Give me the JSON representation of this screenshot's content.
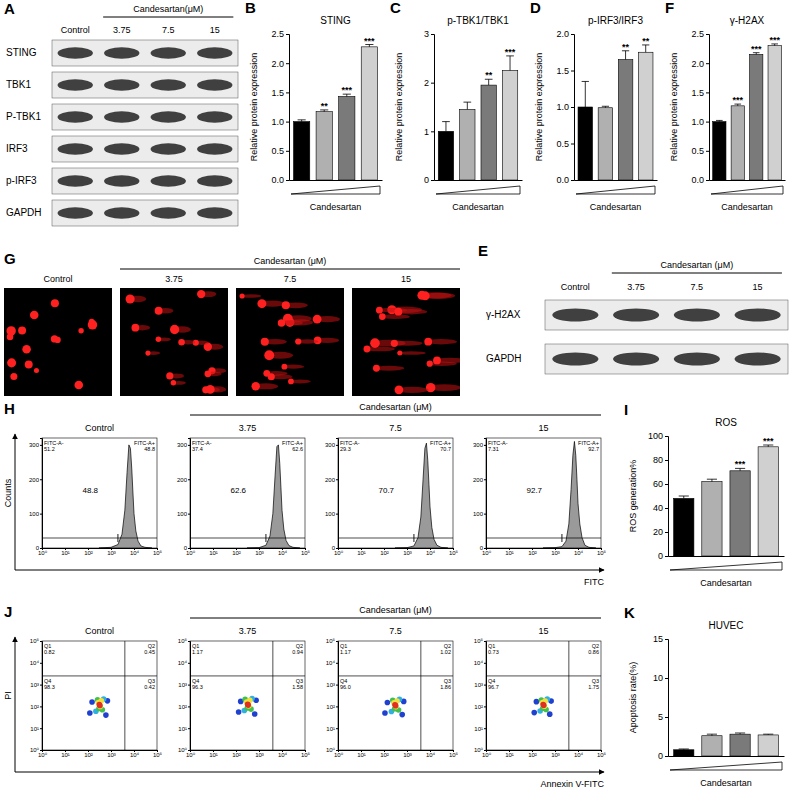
{
  "chart_data": [
    {
      "type": "blot",
      "panel": "A",
      "header": "Candesartan(μM)",
      "columns": [
        "Control",
        "3.75",
        "7.5",
        "15"
      ],
      "rows": [
        "STING",
        "TBK1",
        "P-TBK1",
        "IRF3",
        "p-IRF3",
        "GAPDH"
      ]
    },
    {
      "type": "bar",
      "panel": "B",
      "title": "STING",
      "ylabel": "Relative protein expression",
      "xlabel": "Candesartan",
      "categories": [
        null,
        null,
        null,
        null
      ],
      "values": [
        1.0,
        1.17,
        1.43,
        2.28
      ],
      "errors": [
        0.03,
        0.03,
        0.04,
        0.04
      ],
      "annotations": [
        null,
        "**",
        "***",
        "***"
      ],
      "colors": [
        "#000000",
        "#b0b0b0",
        "#7a7a7a",
        "#d0d0d0"
      ],
      "ylim": [
        0,
        2.5
      ],
      "yticks": [
        {
          "value": 0,
          "label": "0.0"
        },
        0.5,
        {
          "value": 1,
          "label": "1.0"
        },
        1.5,
        {
          "value": 2,
          "label": "2.0"
        },
        2.5
      ],
      "tick_labels": "y"
    },
    {
      "type": "bar",
      "panel": "C",
      "title": "p-TBK1/TBK1",
      "ylabel": "Relative protein expression",
      "xlabel": "Candesartan",
      "categories": [
        null,
        null,
        null,
        null
      ],
      "values": [
        1.0,
        1.45,
        1.95,
        2.25
      ],
      "errors": [
        0.2,
        0.15,
        0.12,
        0.3
      ],
      "annotations": [
        null,
        null,
        "**",
        "***"
      ],
      "colors": [
        "#000000",
        "#b0b0b0",
        "#7a7a7a",
        "#d0d0d0"
      ],
      "ylim": [
        0,
        3
      ],
      "yticks": [
        0,
        1,
        2,
        3
      ],
      "tick_labels": "y"
    },
    {
      "type": "bar",
      "panel": "D",
      "title": "p-IRF3/IRF3",
      "ylabel": "Relative protein expression",
      "xlabel": "Candesartan",
      "categories": [
        null,
        null,
        null,
        null
      ],
      "values": [
        1.0,
        0.99,
        1.65,
        1.75
      ],
      "errors": [
        0.35,
        0.02,
        0.12,
        0.1
      ],
      "annotations": [
        null,
        null,
        "**",
        "**"
      ],
      "colors": [
        "#000000",
        "#b0b0b0",
        "#7a7a7a",
        "#d0d0d0"
      ],
      "ylim": [
        0,
        2
      ],
      "yticks": [
        {
          "value": 0,
          "label": "0.0"
        },
        0.5,
        {
          "value": 1,
          "label": "1.0"
        },
        1.5,
        {
          "value": 2,
          "label": "2.0"
        }
      ],
      "tick_labels": "y"
    },
    {
      "type": "blot",
      "panel": "E",
      "header": "Candesartan (μM)",
      "columns": [
        "Control",
        "3.75",
        "7.5",
        "15"
      ],
      "rows": [
        "γ-H2AX",
        "GAPDH"
      ]
    },
    {
      "type": "bar",
      "panel": "F",
      "title": "γ-H2AX",
      "ylabel": "Relative protein expression",
      "xlabel": "Candesartan",
      "categories": [
        null,
        null,
        null,
        null
      ],
      "values": [
        1.0,
        1.27,
        2.15,
        2.3
      ],
      "errors": [
        0.02,
        0.03,
        0.03,
        0.03
      ],
      "annotations": [
        null,
        "***",
        "***",
        "***"
      ],
      "colors": [
        "#000000",
        "#b0b0b0",
        "#7a7a7a",
        "#d0d0d0"
      ],
      "ylim": [
        0,
        2.5
      ],
      "yticks": [
        {
          "value": 0,
          "label": "0.0"
        },
        0.5,
        {
          "value": 1,
          "label": "1.0"
        },
        1.5,
        {
          "value": 2,
          "label": "2.0"
        },
        2.5
      ],
      "tick_labels": "y"
    },
    {
      "type": "image",
      "panel": "G",
      "header": "Candesartan (μM)",
      "columns": [
        "Control",
        "3.75",
        "7.5",
        "15"
      ]
    },
    {
      "type": "area",
      "panel": "H",
      "header": "Candesartan (μM)",
      "xlabel": "FITC",
      "ylabel": "Counts",
      "log": "x",
      "xlim": [
        1,
        100000
      ],
      "xticks": [
        {
          "value": 1,
          "label": "10⁰"
        },
        {
          "value": 10,
          "label": "10¹"
        },
        {
          "value": 100,
          "label": "10²"
        },
        {
          "value": 1000,
          "label": "10³"
        },
        {
          "value": 10000,
          "label": "10⁴"
        },
        {
          "value": 100000,
          "label": "10⁵"
        }
      ],
      "ylim": [
        0,
        320
      ],
      "yticks": [
        0,
        100,
        200,
        300
      ],
      "panels": [
        {
          "title": "Control",
          "x": [
            300,
            1000,
            2000,
            3000,
            4000,
            5000,
            6000,
            7000,
            8000,
            9000,
            10000,
            12000,
            15000,
            20000,
            30000,
            60000
          ],
          "values": [
            0,
            2,
            10,
            40,
            110,
            220,
            300,
            290,
            230,
            160,
            100,
            50,
            20,
            6,
            2,
            0
          ],
          "gate": 2000,
          "gate_labels": [
            "FITC-A-",
            "FITC-A+"
          ],
          "gate_values": [
            51.2,
            48.8
          ]
        },
        {
          "title": "3.75",
          "x": [
            300,
            1000,
            2000,
            3000,
            4000,
            5000,
            6000,
            7000,
            8000,
            9000,
            10000,
            12000,
            15000,
            20000,
            30000,
            60000
          ],
          "values": [
            0,
            1,
            8,
            35,
            100,
            210,
            295,
            300,
            245,
            175,
            110,
            55,
            22,
            7,
            2,
            0
          ],
          "gate": 2000,
          "gate_labels": [
            "FITC-A-",
            "FITC-A+"
          ],
          "gate_values": [
            37.4,
            62.6
          ]
        },
        {
          "title": "7.5",
          "x": [
            300,
            1000,
            2000,
            3000,
            4000,
            5000,
            6000,
            7000,
            8000,
            9000,
            10000,
            12000,
            15000,
            20000,
            30000,
            60000
          ],
          "values": [
            0,
            1,
            6,
            30,
            90,
            200,
            290,
            305,
            255,
            185,
            120,
            60,
            25,
            8,
            2,
            0
          ],
          "gate": 2000,
          "gate_labels": [
            "FITC-A-",
            "FITC-A+"
          ],
          "gate_values": [
            29.3,
            70.7
          ]
        },
        {
          "title": "15",
          "x": [
            300,
            1000,
            2000,
            3000,
            4000,
            5000,
            6000,
            7000,
            8000,
            9000,
            10000,
            12000,
            15000,
            20000,
            30000,
            60000
          ],
          "values": [
            0,
            1,
            4,
            20,
            70,
            170,
            270,
            310,
            270,
            200,
            130,
            70,
            30,
            8,
            2,
            0
          ],
          "gate": 2000,
          "gate_labels": [
            "FITC-A-",
            "FITC-A+"
          ],
          "gate_values": [
            7.31,
            92.7
          ]
        }
      ]
    },
    {
      "type": "bar",
      "panel": "I",
      "title": "ROS",
      "ylabel": "ROS generation%",
      "xlabel": "Candesartan",
      "categories": [
        null,
        null,
        null,
        null
      ],
      "values": [
        48,
        62,
        71,
        91
      ],
      "errors": [
        2,
        2,
        2,
        1.5
      ],
      "annotations": [
        null,
        null,
        "***",
        "***"
      ],
      "colors": [
        "#000000",
        "#b0b0b0",
        "#7a7a7a",
        "#d0d0d0"
      ],
      "ylim": [
        0,
        100
      ],
      "yticks": [
        0,
        20,
        40,
        60,
        80,
        100
      ],
      "tick_labels": "y"
    },
    {
      "type": "scatter",
      "panel": "J",
      "header": "Candesartan (μM)",
      "xlabel": "Annexin V-FITC",
      "ylabel": "PI",
      "log": true,
      "xlim": [
        1,
        100000
      ],
      "ylim": [
        1,
        100000
      ],
      "xticks": [
        {
          "value": 1,
          "label": "10⁰"
        },
        {
          "value": 10,
          "label": "10¹"
        },
        {
          "value": 100,
          "label": "10²"
        },
        {
          "value": 1000,
          "label": "10³"
        },
        {
          "value": 10000,
          "label": "10⁴"
        },
        {
          "value": 100000,
          "label": "10⁵"
        }
      ],
      "yticks": [
        {
          "value": 1,
          "label": "10⁰"
        },
        {
          "value": 10,
          "label": "10¹"
        },
        {
          "value": 100,
          "label": "10²"
        },
        {
          "value": 1000,
          "label": "10³"
        },
        {
          "value": 10000,
          "label": "10⁴"
        },
        {
          "value": 100000,
          "label": "10⁵"
        }
      ],
      "panels": [
        {
          "title": "Control",
          "x": [
            120,
            700,
            150,
            600,
            220,
            480,
            260,
            420,
            300,
            380,
            280,
            340,
            310,
            330
          ],
          "values": [
            50,
            180,
            160,
            40,
            60,
            220,
            200,
            70,
            80,
            180,
            150,
            100,
            120,
            110
          ],
          "colors": [
            "#2040d0",
            "#2040d0",
            "#2040d0",
            "#2040d0",
            "#30b0e0",
            "#30b0e0",
            "#40c050",
            "#40c050",
            "#40c050",
            "#f0e040",
            "#f0e040",
            "#f0e040",
            "#e03020",
            "#e03020"
          ],
          "quadrant_x": 4000,
          "quadrant_y": 2500,
          "quadrant_labels": [
            "Q1",
            "Q2",
            "Q3",
            "Q4"
          ],
          "quadrant_values": [
            0.82,
            0.45,
            0.42,
            98.3
          ]
        },
        {
          "title": "3.75",
          "x": [
            130,
            750,
            160,
            650,
            230,
            500,
            250,
            450,
            310,
            400,
            290,
            360,
            320,
            340
          ],
          "values": [
            55,
            190,
            170,
            45,
            65,
            230,
            210,
            75,
            85,
            190,
            160,
            105,
            125,
            115
          ],
          "colors": [
            "#2040d0",
            "#2040d0",
            "#2040d0",
            "#2040d0",
            "#30b0e0",
            "#30b0e0",
            "#40c050",
            "#40c050",
            "#40c050",
            "#f0e040",
            "#f0e040",
            "#f0e040",
            "#e03020",
            "#e03020"
          ],
          "quadrant_x": 4000,
          "quadrant_y": 2500,
          "quadrant_labels": [
            "Q1",
            "Q2",
            "Q3",
            "Q4"
          ],
          "quadrant_values": [
            1.17,
            0.94,
            1.58,
            96.3
          ]
        },
        {
          "title": "7.5",
          "x": [
            110,
            720,
            140,
            620,
            210,
            470,
            240,
            430,
            290,
            370,
            270,
            330,
            300,
            320
          ],
          "values": [
            50,
            170,
            150,
            42,
            58,
            210,
            190,
            68,
            78,
            175,
            145,
            98,
            118,
            108
          ],
          "colors": [
            "#2040d0",
            "#2040d0",
            "#2040d0",
            "#2040d0",
            "#30b0e0",
            "#30b0e0",
            "#40c050",
            "#40c050",
            "#40c050",
            "#f0e040",
            "#f0e040",
            "#f0e040",
            "#e03020",
            "#e03020"
          ],
          "quadrant_x": 4000,
          "quadrant_y": 2500,
          "quadrant_labels": [
            "Q1",
            "Q2",
            "Q3",
            "Q4"
          ],
          "quadrant_values": [
            1.17,
            1.02,
            1.86,
            96
          ],
          "quadrant_value_labels": [
            "1.17",
            "1.02",
            "1.86",
            "96.0"
          ]
        },
        {
          "title": "15",
          "x": [
            125,
            680,
            155,
            590,
            225,
            460,
            255,
            410,
            295,
            375,
            285,
            345,
            305,
            325
          ],
          "values": [
            52,
            175,
            165,
            44,
            62,
            215,
            195,
            72,
            82,
            178,
            152,
            102,
            122,
            112
          ],
          "colors": [
            "#2040d0",
            "#2040d0",
            "#2040d0",
            "#2040d0",
            "#30b0e0",
            "#30b0e0",
            "#40c050",
            "#40c050",
            "#40c050",
            "#f0e040",
            "#f0e040",
            "#f0e040",
            "#e03020",
            "#e03020"
          ],
          "quadrant_x": 4000,
          "quadrant_y": 2500,
          "quadrant_labels": [
            "Q1",
            "Q2",
            "Q3",
            "Q4"
          ],
          "quadrant_values": [
            0.73,
            0.86,
            1.75,
            96.7
          ]
        }
      ]
    },
    {
      "type": "bar",
      "panel": "K",
      "title": "HUVEC",
      "ylabel": "Apoptosis rate(%)",
      "xlabel": "Candesartan",
      "categories": [
        null,
        null,
        null,
        null
      ],
      "values": [
        0.8,
        2.6,
        2.8,
        2.7
      ],
      "errors": [
        0.1,
        0.2,
        0.15,
        0.1
      ],
      "colors": [
        "#000000",
        "#b0b0b0",
        "#7a7a7a",
        "#d0d0d0"
      ],
      "ylim": [
        0,
        15
      ],
      "yticks": [
        0,
        5,
        10,
        15
      ],
      "tick_labels": "y"
    }
  ]
}
